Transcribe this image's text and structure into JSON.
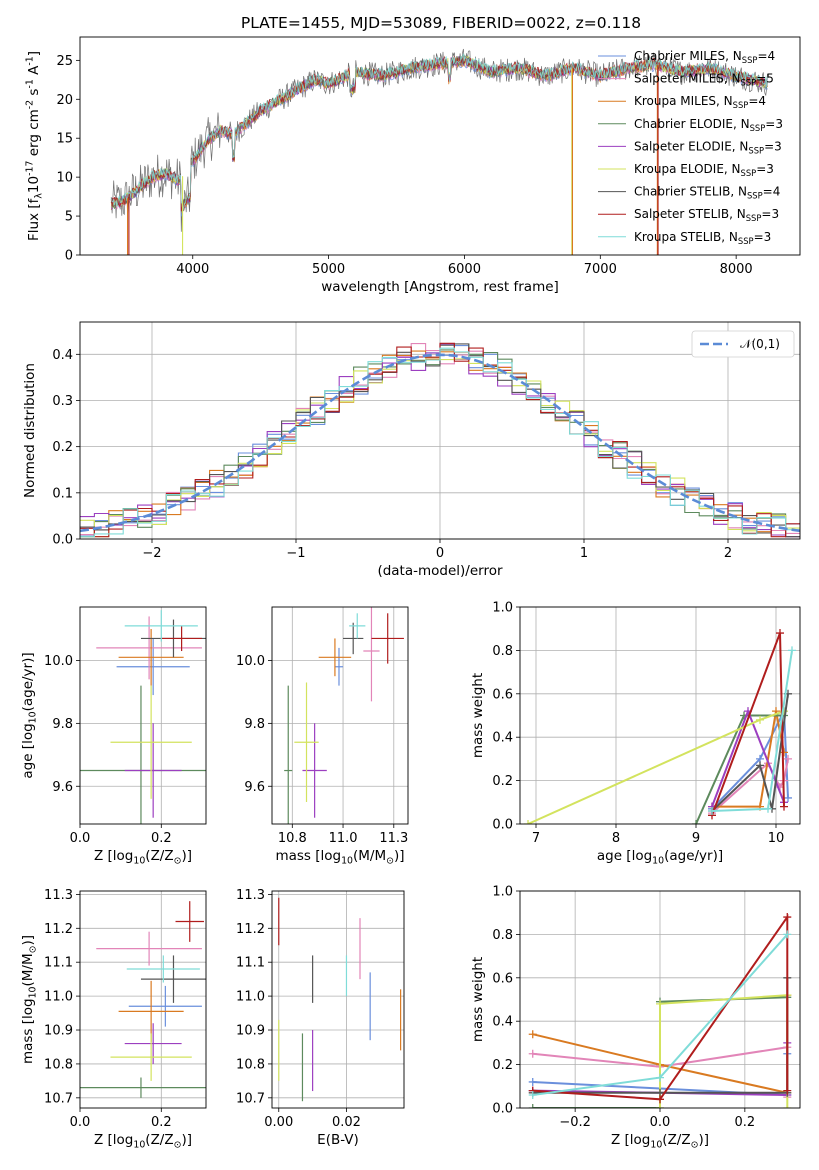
{
  "title": "PLATE=1455, MJD=53089, FIBERID=0022, z=0.118",
  "legend_entries": [
    {
      "name": "Chabrier MILES, N$_{SSP}$=4",
      "color": "#6a8fdc"
    },
    {
      "name": "Salpeter MILES, N$_{SSP}$=5",
      "color": "#e285b8"
    },
    {
      "name": "Kroupa MILES, N$_{SSP}$=4",
      "color": "#d97a21"
    },
    {
      "name": "Chabrier ELODIE, N$_{SSP}$=3",
      "color": "#5d8a5d"
    },
    {
      "name": "Salpeter ELODIE, N$_{SSP}$=3",
      "color": "#9c3fc0"
    },
    {
      "name": "Kroupa ELODIE, N$_{SSP}$=3",
      "color": "#d3e35e"
    },
    {
      "name": "Chabrier STELIB, N$_{SSP}$=4",
      "color": "#555555"
    },
    {
      "name": "Salpeter STELIB, N$_{SSP}$=3",
      "color": "#b01d1d"
    },
    {
      "name": "Kroupa STELIB, N$_{SSP}$=3",
      "color": "#7fdcd8"
    }
  ],
  "chart_data": [
    {
      "id": "spectrum",
      "type": "line",
      "xlabel": "wavelength [Angstrom, rest frame]",
      "ylabel": "Flux [f$_\\lambda$10$^{-17}$ erg cm$^{-2}$ s$^{-1}$ A$^{-1}$]",
      "xlim": [
        3170,
        8470
      ],
      "ylim": [
        0,
        28
      ],
      "xticks": [
        4000,
        5000,
        6000,
        7000,
        8000
      ],
      "yticks": [
        0,
        5,
        10,
        15,
        20,
        25
      ],
      "grid": false,
      "legend": "upper right",
      "data_trend": {
        "x": [
          3400,
          3500,
          3600,
          3700,
          3800,
          3900,
          4000,
          4100,
          4200,
          4300,
          4500,
          4700,
          4900,
          5000,
          5200,
          5400,
          5600,
          5800,
          6000,
          6200,
          6400,
          6600,
          6800,
          7000,
          7200,
          7400,
          7600,
          7800,
          8000,
          8230
        ],
        "y": [
          6.5,
          7.0,
          8.5,
          10.0,
          10.5,
          9.5,
          12.0,
          14.5,
          16.0,
          15.5,
          18.5,
          20.5,
          22.5,
          22.0,
          23.5,
          23.0,
          24.0,
          24.5,
          25.0,
          23.5,
          24.0,
          23.0,
          24.0,
          23.0,
          24.0,
          24.5,
          23.5,
          24.0,
          23.0,
          22.0
        ]
      }
    },
    {
      "id": "residuals",
      "type": "area",
      "xlabel": "(data-model)/error",
      "ylabel": "Normed distribution",
      "xlim": [
        -2.5,
        2.5
      ],
      "ylim": [
        0,
        0.47
      ],
      "xticks": [
        -2,
        -1,
        0,
        1,
        2
      ],
      "yticks": [
        0.0,
        0.1,
        0.2,
        0.3,
        0.4
      ],
      "grid": true,
      "legend": "upper right",
      "reference_curve": "$\\mathcal{N}(0,1)$",
      "bin_edges_start": -2.5,
      "bin_width": 0.1
    },
    {
      "id": "age_vs_Z",
      "type": "scatter",
      "xlabel": "Z [log$_{10}$(Z/Z$_\\odot$)]",
      "ylabel": "age  [log$_{10}$(age/yr)]",
      "xlim": [
        0,
        0.31
      ],
      "ylim": [
        9.48,
        10.17
      ],
      "xticks": [
        0.0,
        0.2
      ],
      "yticks": [
        9.6,
        9.8,
        10.0
      ],
      "grid": true,
      "points": [
        {
          "x": 0.18,
          "y": 9.98,
          "xerr": 0.09,
          "yerr": 0.09,
          "color": "#6a8fdc"
        },
        {
          "x": 0.17,
          "y": 10.04,
          "xerr": 0.13,
          "yerr": 0.1,
          "color": "#e285b8"
        },
        {
          "x": 0.175,
          "y": 10.01,
          "xerr": 0.08,
          "yerr": 0.09,
          "color": "#d97a21"
        },
        {
          "x": 0.15,
          "y": 9.65,
          "xerr": 0.17,
          "yerr": 0.27,
          "color": "#5d8a5d"
        },
        {
          "x": 0.18,
          "y": 9.65,
          "xerr": 0.07,
          "yerr": 0.15,
          "color": "#9c3fc0"
        },
        {
          "x": 0.175,
          "y": 9.74,
          "xerr": 0.1,
          "yerr": 0.18,
          "color": "#d3e35e"
        },
        {
          "x": 0.23,
          "y": 10.07,
          "xerr": 0.08,
          "yerr": 0.06,
          "color": "#555555"
        },
        {
          "x": 0.25,
          "y": 10.07,
          "xerr": 0.05,
          "yerr": 0.04,
          "color": "#b01d1d"
        },
        {
          "x": 0.2,
          "y": 10.11,
          "xerr": 0.09,
          "yerr": 0.05,
          "color": "#7fdcd8"
        }
      ]
    },
    {
      "id": "age_vs_mass",
      "type": "scatter",
      "xlabel": "mass [log$_{10}$(M/M$_\\odot$)]",
      "ylabel": "",
      "xlim": [
        10.65,
        11.32
      ],
      "ylim": [
        9.48,
        10.17
      ],
      "xticks": [
        10.75,
        11.0,
        11.25
      ],
      "yticks": [
        9.6,
        9.8,
        10.0
      ],
      "grid": true,
      "points": [
        {
          "x": 10.98,
          "y": 9.98,
          "xerr": 0.02,
          "yerr": 0.06,
          "color": "#6a8fdc"
        },
        {
          "x": 11.14,
          "y": 10.03,
          "xerr": 0.04,
          "yerr": 0.16,
          "color": "#e285b8"
        },
        {
          "x": 10.96,
          "y": 10.01,
          "xerr": 0.08,
          "yerr": 0.06,
          "color": "#d97a21"
        },
        {
          "x": 10.73,
          "y": 9.65,
          "xerr": 0.02,
          "yerr": 0.27,
          "color": "#5d8a5d"
        },
        {
          "x": 10.86,
          "y": 9.65,
          "xerr": 0.06,
          "yerr": 0.15,
          "color": "#9c3fc0"
        },
        {
          "x": 10.82,
          "y": 9.74,
          "xerr": 0.06,
          "yerr": 0.19,
          "color": "#d3e35e"
        },
        {
          "x": 11.05,
          "y": 10.07,
          "xerr": 0.05,
          "yerr": 0.05,
          "color": "#555555"
        },
        {
          "x": 11.22,
          "y": 10.07,
          "xerr": 0.08,
          "yerr": 0.08,
          "color": "#b01d1d"
        },
        {
          "x": 11.07,
          "y": 10.11,
          "xerr": 0.04,
          "yerr": 0.04,
          "color": "#7fdcd8"
        }
      ]
    },
    {
      "id": "weight_vs_age",
      "type": "line",
      "xlabel": "age  [log$_{10}$(age/yr)]",
      "ylabel": "mass weight",
      "xlim": [
        6.8,
        10.3
      ],
      "ylim": [
        0,
        1.0
      ],
      "xticks": [
        7,
        8,
        9,
        10
      ],
      "yticks": [
        0.0,
        0.2,
        0.4,
        0.6,
        0.8,
        1.0
      ],
      "grid": true,
      "series": [
        {
          "color": "#6a8fdc",
          "x": [
            9.2,
            9.8,
            10.1,
            10.15
          ],
          "y": [
            0.07,
            0.3,
            0.52,
            0.12
          ]
        },
        {
          "color": "#e285b8",
          "x": [
            9.2,
            9.9,
            10.05,
            10.1,
            10.15
          ],
          "y": [
            0.05,
            0.28,
            0.17,
            0.2,
            0.3
          ]
        },
        {
          "color": "#d97a21",
          "x": [
            9.2,
            9.8,
            10.0,
            10.1
          ],
          "y": [
            0.08,
            0.08,
            0.52,
            0.33
          ]
        },
        {
          "color": "#5d8a5d",
          "x": [
            9.0,
            9.6,
            10.1
          ],
          "y": [
            0.0,
            0.5,
            0.5
          ]
        },
        {
          "color": "#9c3fc0",
          "x": [
            9.2,
            9.65,
            10.1
          ],
          "y": [
            0.08,
            0.52,
            0.1
          ]
        },
        {
          "color": "#d3e35e",
          "x": [
            6.9,
            9.8,
            10.1
          ],
          "y": [
            0.0,
            0.48,
            0.52
          ]
        },
        {
          "color": "#555555",
          "x": [
            9.2,
            9.8,
            9.95,
            10.15
          ],
          "y": [
            0.06,
            0.27,
            0.07,
            0.6
          ]
        },
        {
          "color": "#b01d1d",
          "x": [
            9.2,
            10.05,
            10.1
          ],
          "y": [
            0.04,
            0.88,
            0.08
          ]
        },
        {
          "color": "#7fdcd8",
          "x": [
            9.2,
            9.9,
            10.2
          ],
          "y": [
            0.06,
            0.07,
            0.8
          ]
        }
      ]
    },
    {
      "id": "mass_vs_Z",
      "type": "scatter",
      "xlabel": "Z [log$_{10}$(Z/Z$_\\odot$)]",
      "ylabel": "mass [log$_{10}$(M/M$_\\odot$)]",
      "xlim": [
        0,
        0.31
      ],
      "ylim": [
        10.67,
        11.31
      ],
      "xticks": [
        0.0,
        0.2
      ],
      "yticks": [
        10.7,
        10.8,
        10.9,
        11.0,
        11.1,
        11.2,
        11.3
      ],
      "grid": true,
      "points": [
        {
          "x": 0.21,
          "y": 10.97,
          "xerr": 0.09,
          "yerr": 0.06,
          "color": "#6a8fdc"
        },
        {
          "x": 0.17,
          "y": 11.14,
          "xerr": 0.13,
          "yerr": 0.05,
          "color": "#e285b8"
        },
        {
          "x": 0.175,
          "y": 10.955,
          "xerr": 0.08,
          "yerr": 0.09,
          "color": "#d97a21"
        },
        {
          "x": 0.15,
          "y": 10.73,
          "xerr": 0.17,
          "yerr": 0.03,
          "color": "#5d8a5d"
        },
        {
          "x": 0.18,
          "y": 10.86,
          "xerr": 0.07,
          "yerr": 0.06,
          "color": "#9c3fc0"
        },
        {
          "x": 0.175,
          "y": 10.82,
          "xerr": 0.1,
          "yerr": 0.07,
          "color": "#d3e35e"
        },
        {
          "x": 0.23,
          "y": 11.05,
          "xerr": 0.08,
          "yerr": 0.07,
          "color": "#555555"
        },
        {
          "x": 0.27,
          "y": 11.22,
          "xerr": 0.035,
          "yerr": 0.06,
          "color": "#b01d1d"
        },
        {
          "x": 0.205,
          "y": 11.08,
          "xerr": 0.09,
          "yerr": 0.04,
          "color": "#7fdcd8"
        }
      ]
    },
    {
      "id": "mass_vs_EBV",
      "type": "scatter",
      "xlabel": "E(B-V)",
      "ylabel": "",
      "xlim": [
        -0.002,
        0.037
      ],
      "ylim": [
        10.67,
        11.31
      ],
      "xticks": [
        0.0,
        0.02
      ],
      "grid": true,
      "points": [
        {
          "x": 0.027,
          "y": 10.97,
          "xerr": 0,
          "yerr": 0.1,
          "color": "#6a8fdc"
        },
        {
          "x": 0.024,
          "y": 11.14,
          "xerr": 0,
          "yerr": 0.09,
          "color": "#e285b8"
        },
        {
          "x": 0.036,
          "y": 10.93,
          "xerr": 0,
          "yerr": 0.09,
          "color": "#d97a21"
        },
        {
          "x": 0.007,
          "y": 10.79,
          "xerr": 0,
          "yerr": 0.1,
          "color": "#5d8a5d"
        },
        {
          "x": 0.01,
          "y": 10.81,
          "xerr": 0,
          "yerr": 0.09,
          "color": "#9c3fc0"
        },
        {
          "x": 0.0,
          "y": 10.84,
          "xerr": 0,
          "yerr": 0.09,
          "color": "#d3e35e"
        },
        {
          "x": 0.01,
          "y": 11.05,
          "xerr": 0,
          "yerr": 0.07,
          "color": "#555555"
        },
        {
          "x": 0.0,
          "y": 11.22,
          "xerr": 0,
          "yerr": 0.07,
          "color": "#b01d1d"
        },
        {
          "x": 0.02,
          "y": 11.06,
          "xerr": 0,
          "yerr": 0.06,
          "color": "#7fdcd8"
        }
      ]
    },
    {
      "id": "weight_vs_Z",
      "type": "line",
      "xlabel": "Z [log$_{10}$(Z/Z$_\\odot$)]",
      "ylabel": "mass weight",
      "xlim": [
        -0.33,
        0.33
      ],
      "ylim": [
        0,
        1.0
      ],
      "xticks": [
        -0.2,
        0.0,
        0.2
      ],
      "yticks": [
        0.0,
        0.2,
        0.4,
        0.6,
        0.8,
        1.0
      ],
      "grid": true,
      "series": [
        {
          "color": "#6a8fdc",
          "x": [
            -0.3,
            0.0,
            0.3,
            0.3
          ],
          "y": [
            0.12,
            0.09,
            0.06,
            0.25
          ]
        },
        {
          "color": "#e285b8",
          "x": [
            -0.3,
            0.0,
            0.3,
            0.3
          ],
          "y": [
            0.25,
            0.19,
            0.28,
            0.05
          ]
        },
        {
          "color": "#d97a21",
          "x": [
            -0.3,
            0.0,
            0.3,
            0.3
          ],
          "y": [
            0.34,
            0.2,
            0.07,
            0.52
          ]
        },
        {
          "color": "#5d8a5d",
          "x": [
            -0.3,
            0.0,
            0.0,
            0.3
          ],
          "y": [
            0.0,
            0.0,
            0.49,
            0.51
          ]
        },
        {
          "color": "#9c3fc0",
          "x": [
            -0.3,
            0.0,
            0.3,
            0.3
          ],
          "y": [
            0.08,
            0.07,
            0.06,
            0.3
          ]
        },
        {
          "color": "#d3e35e",
          "x": [
            0.0,
            0.0,
            0.3,
            0.3
          ],
          "y": [
            0.0,
            0.48,
            0.52,
            0.0
          ]
        },
        {
          "color": "#555555",
          "x": [
            -0.3,
            0.0,
            0.3,
            0.3
          ],
          "y": [
            0.07,
            0.07,
            0.07,
            0.6
          ]
        },
        {
          "color": "#b01d1d",
          "x": [
            -0.3,
            0.0,
            0.3,
            0.3
          ],
          "y": [
            0.08,
            0.04,
            0.88,
            0.08
          ]
        },
        {
          "color": "#7fdcd8",
          "x": [
            -0.3,
            0.0,
            0.3
          ],
          "y": [
            0.06,
            0.14,
            0.8
          ]
        }
      ]
    }
  ]
}
